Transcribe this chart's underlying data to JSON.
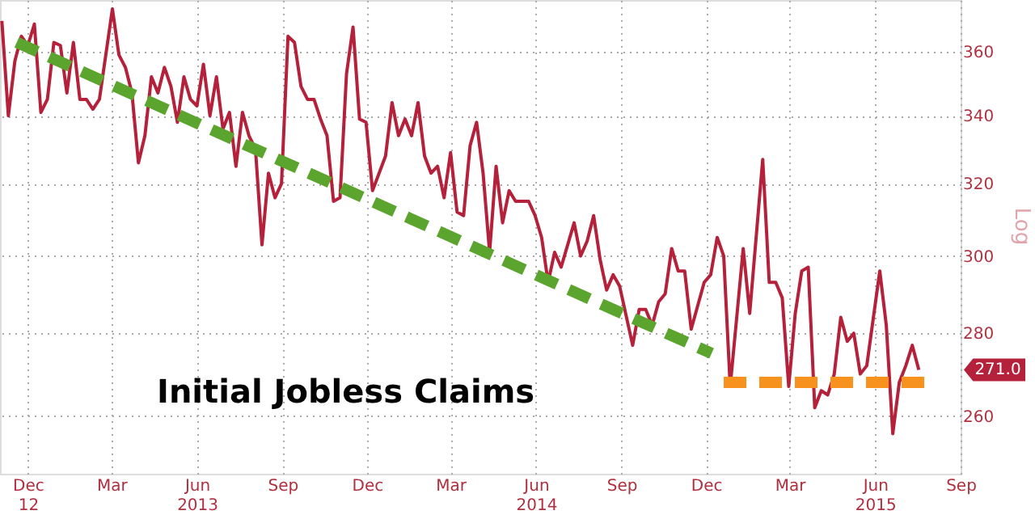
{
  "chart_data": {
    "type": "line",
    "title": "Initial Jobless Claims",
    "ylabel": "Log",
    "log": true,
    "grid": true,
    "xlim": [
      "2012-11-01",
      "2015-09-01"
    ],
    "xticks": [
      {
        "value": "2012-12-01",
        "label": "Dec\n12"
      },
      {
        "value": "2013-03-01",
        "label": "Mar"
      },
      {
        "value": "2013-06-01",
        "label": "Jun\n2013"
      },
      {
        "value": "2013-09-01",
        "label": "Sep"
      },
      {
        "value": "2013-12-01",
        "label": "Dec"
      },
      {
        "value": "2014-03-01",
        "label": "Mar"
      },
      {
        "value": "2014-06-01",
        "label": "Jun\n2014"
      },
      {
        "value": "2014-09-01",
        "label": "Sep"
      },
      {
        "value": "2014-12-01",
        "label": "Dec"
      },
      {
        "value": "2015-03-01",
        "label": "Mar"
      },
      {
        "value": "2015-06-01",
        "label": "Jun\n2015"
      },
      {
        "value": "2015-09-01",
        "label": "Sep"
      }
    ],
    "ylim": [
      247,
      377
    ],
    "yticks": [
      260,
      280,
      300,
      320,
      340,
      360
    ],
    "annotations": [
      {
        "text": "271.0",
        "y": 271
      }
    ],
    "series": [
      {
        "color": "#b5213a",
        "x": [
          "2012-11-03",
          "2012-11-10",
          "2012-11-17",
          "2012-11-24",
          "2012-12-01",
          "2012-12-08",
          "2012-12-15",
          "2012-12-22",
          "2012-12-29",
          "2013-01-05",
          "2013-01-12",
          "2013-01-19",
          "2013-01-26",
          "2013-02-02",
          "2013-02-09",
          "2013-02-16",
          "2013-03-02",
          "2013-03-09",
          "2013-03-16",
          "2013-03-23",
          "2013-03-30",
          "2013-04-06",
          "2013-04-13",
          "2013-04-20",
          "2013-04-27",
          "2013-05-04",
          "2013-05-11",
          "2013-05-18",
          "2013-05-25",
          "2013-06-01",
          "2013-06-08",
          "2013-06-15",
          "2013-06-22",
          "2013-06-29",
          "2013-07-06",
          "2013-07-13",
          "2013-07-20",
          "2013-07-27",
          "2013-08-03",
          "2013-08-10",
          "2013-08-17",
          "2013-08-24",
          "2013-08-31",
          "2013-09-07",
          "2013-09-14",
          "2013-09-21",
          "2013-09-28",
          "2013-10-05",
          "2013-10-12",
          "2013-10-19",
          "2013-10-26",
          "2013-11-02",
          "2013-11-09",
          "2013-11-16",
          "2013-11-23",
          "2013-11-30",
          "2013-12-07",
          "2013-12-21",
          "2013-12-28",
          "2014-01-04",
          "2014-01-11",
          "2014-01-18",
          "2014-01-25",
          "2014-02-01",
          "2014-02-08",
          "2014-02-15",
          "2014-02-22",
          "2014-03-01",
          "2014-03-08",
          "2014-03-15",
          "2014-03-22",
          "2014-03-29",
          "2014-04-05",
          "2014-04-12",
          "2014-04-19",
          "2014-04-26",
          "2014-05-03",
          "2014-05-10",
          "2014-05-24",
          "2014-05-31",
          "2014-06-07",
          "2014-06-14",
          "2014-06-21",
          "2014-06-28",
          "2014-07-12",
          "2014-07-19",
          "2014-07-26",
          "2014-08-02",
          "2014-08-09",
          "2014-08-16",
          "2014-08-23",
          "2014-08-30",
          "2014-09-13",
          "2014-09-20",
          "2014-09-27",
          "2014-10-04",
          "2014-10-11",
          "2014-10-18",
          "2014-10-25",
          "2014-11-01",
          "2014-11-08",
          "2014-11-15",
          "2014-11-29",
          "2014-12-06",
          "2014-12-13",
          "2014-12-20",
          "2014-12-27",
          "2015-01-10",
          "2015-01-17",
          "2015-01-31",
          "2015-02-07",
          "2015-02-14",
          "2015-02-21",
          "2015-02-28",
          "2015-03-07",
          "2015-03-14",
          "2015-03-21",
          "2015-03-28",
          "2015-04-04",
          "2015-04-11",
          "2015-04-18",
          "2015-04-25",
          "2015-05-02",
          "2015-05-09",
          "2015-05-16",
          "2015-05-23",
          "2015-06-06",
          "2015-06-13",
          "2015-06-20",
          "2015-06-27",
          "2015-07-04",
          "2015-07-11",
          "2015-07-18"
        ],
        "values": [
          370,
          340,
          357,
          365,
          362,
          369,
          341,
          345,
          363,
          362,
          347,
          363,
          345,
          345,
          342,
          345,
          374,
          359,
          355,
          347,
          326,
          334,
          352,
          347,
          355,
          349,
          338,
          352,
          345,
          343,
          356,
          340,
          352,
          336,
          341,
          325,
          341,
          334,
          330,
          303,
          323,
          316,
          320,
          365,
          363,
          349,
          345,
          345,
          339,
          334,
          315,
          316,
          353,
          368,
          339,
          338,
          318,
          328,
          344,
          334,
          339,
          334,
          344,
          328,
          323,
          325,
          316,
          329,
          312,
          311,
          331,
          338,
          323,
          301,
          325,
          309,
          318,
          315,
          315,
          311,
          305,
          293,
          301,
          297,
          309,
          300,
          304,
          311,
          299,
          291,
          295,
          292,
          277,
          286,
          286,
          282,
          288,
          290,
          302,
          296,
          296,
          281,
          293,
          295,
          305,
          300,
          267,
          302,
          285,
          327,
          293,
          293,
          289,
          267,
          285,
          296,
          297,
          262,
          266,
          265,
          270,
          284,
          278,
          280,
          270,
          272,
          296,
          282,
          256,
          268,
          272,
          277,
          271
        ]
      },
      {
        "type": "line",
        "color": "#5ba52e",
        "line_style": "dashed",
        "x": [
          "2012-11-19",
          "2014-12-07"
        ],
        "values": [
          363,
          275
        ]
      },
      {
        "type": "line",
        "color": "#f7921e",
        "line_style": "dashed",
        "x": [
          "2014-12-20",
          "2015-07-29"
        ],
        "values": [
          268,
          268
        ]
      }
    ]
  }
}
